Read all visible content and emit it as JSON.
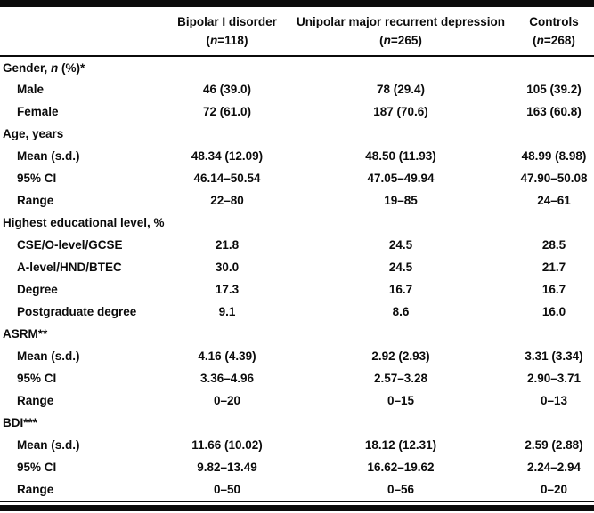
{
  "table": {
    "colors": {
      "text": "#0b0b0b",
      "rule": "#0b0b0b",
      "background": "#ffffff"
    },
    "header": {
      "columns": [
        {
          "line1": "Bipolar I disorder",
          "line2_parts": [
            {
              "t": "("
            },
            {
              "t": "n",
              "i": true
            },
            {
              "t": "=118)"
            }
          ]
        },
        {
          "line1": "Unipolar major recurrent depression",
          "line2_parts": [
            {
              "t": "("
            },
            {
              "t": "n",
              "i": true
            },
            {
              "t": "=265)"
            }
          ]
        },
        {
          "line1": "Controls",
          "line2_parts": [
            {
              "t": "("
            },
            {
              "t": "n",
              "i": true
            },
            {
              "t": "=268)"
            }
          ]
        }
      ]
    },
    "rows": [
      {
        "type": "section",
        "label_parts": [
          {
            "t": "Gender, "
          },
          {
            "t": "n",
            "i": true
          },
          {
            "t": " (%)*"
          }
        ],
        "cells": [
          "",
          "",
          ""
        ]
      },
      {
        "type": "item",
        "label_parts": [
          {
            "t": "Male"
          }
        ],
        "cells": [
          "46 (39.0)",
          "78 (29.4)",
          "105 (39.2)"
        ]
      },
      {
        "type": "item",
        "label_parts": [
          {
            "t": "Female"
          }
        ],
        "cells": [
          "72 (61.0)",
          "187 (70.6)",
          "163 (60.8)"
        ]
      },
      {
        "type": "section",
        "label_parts": [
          {
            "t": "Age, years"
          }
        ],
        "cells": [
          "",
          "",
          ""
        ]
      },
      {
        "type": "item",
        "label_parts": [
          {
            "t": "Mean (s.d.)"
          }
        ],
        "cells": [
          "48.34 (12.09)",
          "48.50 (11.93)",
          "48.99 (8.98)"
        ]
      },
      {
        "type": "item",
        "label_parts": [
          {
            "t": "95% CI"
          }
        ],
        "cells": [
          "46.14–50.54",
          "47.05–49.94",
          "47.90–50.08"
        ]
      },
      {
        "type": "item",
        "label_parts": [
          {
            "t": "Range"
          }
        ],
        "cells": [
          "22–80",
          "19–85",
          "24–61"
        ]
      },
      {
        "type": "section",
        "label_parts": [
          {
            "t": "Highest educational level, %"
          }
        ],
        "cells": [
          "",
          "",
          ""
        ]
      },
      {
        "type": "item",
        "label_parts": [
          {
            "t": "CSE/O-level/GCSE"
          }
        ],
        "cells": [
          "21.8",
          "24.5",
          "28.5"
        ]
      },
      {
        "type": "item",
        "label_parts": [
          {
            "t": "A-level/HND/BTEC"
          }
        ],
        "cells": [
          "30.0",
          "24.5",
          "21.7"
        ]
      },
      {
        "type": "item",
        "label_parts": [
          {
            "t": "Degree"
          }
        ],
        "cells": [
          "17.3",
          "16.7",
          "16.7"
        ]
      },
      {
        "type": "item",
        "label_parts": [
          {
            "t": "Postgraduate degree"
          }
        ],
        "cells": [
          "9.1",
          "8.6",
          "16.0"
        ]
      },
      {
        "type": "section",
        "label_parts": [
          {
            "t": "ASRM**"
          }
        ],
        "cells": [
          "",
          "",
          ""
        ]
      },
      {
        "type": "item",
        "label_parts": [
          {
            "t": "Mean (s.d.)"
          }
        ],
        "cells": [
          "4.16 (4.39)",
          "2.92 (2.93)",
          "3.31 (3.34)"
        ]
      },
      {
        "type": "item",
        "label_parts": [
          {
            "t": "95% CI"
          }
        ],
        "cells": [
          "3.36–4.96",
          "2.57–3.28",
          "2.90–3.71"
        ]
      },
      {
        "type": "item",
        "label_parts": [
          {
            "t": "Range"
          }
        ],
        "cells": [
          "0–20",
          "0–15",
          "0–13"
        ]
      },
      {
        "type": "section",
        "label_parts": [
          {
            "t": "BDI***"
          }
        ],
        "cells": [
          "",
          "",
          ""
        ]
      },
      {
        "type": "item",
        "label_parts": [
          {
            "t": "Mean (s.d.)"
          }
        ],
        "cells": [
          "11.66 (10.02)",
          "18.12 (12.31)",
          "2.59 (2.88)"
        ]
      },
      {
        "type": "item",
        "label_parts": [
          {
            "t": "95% CI"
          }
        ],
        "cells": [
          "9.82–13.49",
          "16.62–19.62",
          "2.24–2.94"
        ]
      },
      {
        "type": "item",
        "label_parts": [
          {
            "t": "Range"
          }
        ],
        "cells": [
          "0–50",
          "0–56",
          "0–20"
        ]
      }
    ]
  }
}
